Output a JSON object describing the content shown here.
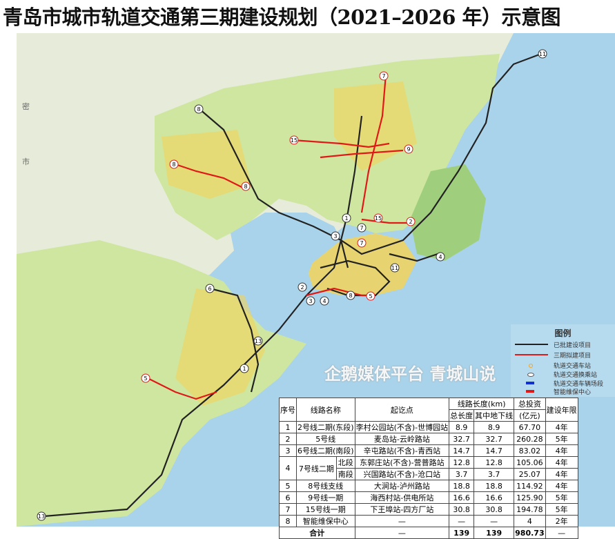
{
  "title": "青岛市城市轨道交通第三期建设规划（2021–2026 年）示意图",
  "colors": {
    "sea": "#a9d3ea",
    "land": "#cfe6a0",
    "urban": "#f2d35a",
    "approved_line": "#222222",
    "planned_line": "#e01818",
    "station": "#f5a623",
    "interchange": "#ffffff",
    "depot": "#1030d0",
    "maintenance": "#e01818"
  },
  "map": {
    "place_labels": [
      "密",
      "市"
    ],
    "line_badges": [
      "11",
      "8",
      "7",
      "15",
      "9",
      "8",
      "8",
      "1",
      "7",
      "15",
      "2",
      "3",
      "7",
      "4",
      "11",
      "2",
      "3",
      "4",
      "8",
      "5",
      "6",
      "13",
      "1",
      "5",
      "13"
    ]
  },
  "legend": {
    "title": "图例",
    "items": [
      {
        "label": "已批建设项目",
        "icon": "black-line"
      },
      {
        "label": "三期拟建项目",
        "icon": "red-line"
      },
      {
        "label": "轨道交通车站",
        "icon": "orange-dot"
      },
      {
        "label": "轨道交通换乘站",
        "icon": "white-oval"
      },
      {
        "label": "轨道交通车辆场段",
        "icon": "blue-bar"
      },
      {
        "label": "智能维保中心",
        "icon": "red-bar"
      }
    ]
  },
  "table": {
    "headers": {
      "no": "序号",
      "name": "线路名称",
      "section": "起讫点",
      "length": "线路长度(km)",
      "total_length": "总长度",
      "underground": "其中地下线",
      "investment": "总投资",
      "investment_unit": "(亿元)",
      "years": "建设年限"
    },
    "rows": [
      {
        "no": "1",
        "name": "2号线二期(东段)",
        "section": "李村公园站(不含)-世博园站",
        "total": "8.9",
        "underground": "8.9",
        "investment": "67.70",
        "years": "4年"
      },
      {
        "no": "2",
        "name": "5号线",
        "section": "麦岛站-云岭路站",
        "total": "32.7",
        "underground": "32.7",
        "investment": "260.28",
        "years": "5年"
      },
      {
        "no": "3",
        "name": "6号线二期(南段)",
        "section": "辛屯路站(不含)-青西站",
        "total": "14.7",
        "underground": "14.7",
        "investment": "83.02",
        "years": "4年"
      },
      {
        "no": "4",
        "name": "7号线二期",
        "sub": "北段",
        "section": "东郭庄站(不含)-营普路站",
        "total": "12.8",
        "underground": "12.8",
        "investment": "105.06",
        "years": "4年"
      },
      {
        "sub": "南段",
        "section": "兴国路站(不含)-沧口站",
        "total": "3.7",
        "underground": "3.7",
        "investment": "25.07",
        "years": "4年"
      },
      {
        "no": "5",
        "name": "8号线支线",
        "section": "大涧站-泸州路站",
        "total": "18.8",
        "underground": "18.8",
        "investment": "114.92",
        "years": "4年"
      },
      {
        "no": "6",
        "name": "9号线一期",
        "section": "海西村站-供电所站",
        "total": "16.6",
        "underground": "16.6",
        "investment": "125.90",
        "years": "5年"
      },
      {
        "no": "7",
        "name": "15号线一期",
        "section": "下王埠站-四方厂站",
        "total": "30.8",
        "underground": "30.8",
        "investment": "194.78",
        "years": "5年"
      },
      {
        "no": "8",
        "name": "智能维保中心",
        "section": "—",
        "total": "—",
        "underground": "—",
        "investment": "4",
        "years": "2年"
      }
    ],
    "total": {
      "label": "合计",
      "section": "—",
      "total": "139",
      "underground": "139",
      "investment": "980.73",
      "years": "—"
    }
  },
  "watermark": "企鹅媒体平台 青城山说"
}
